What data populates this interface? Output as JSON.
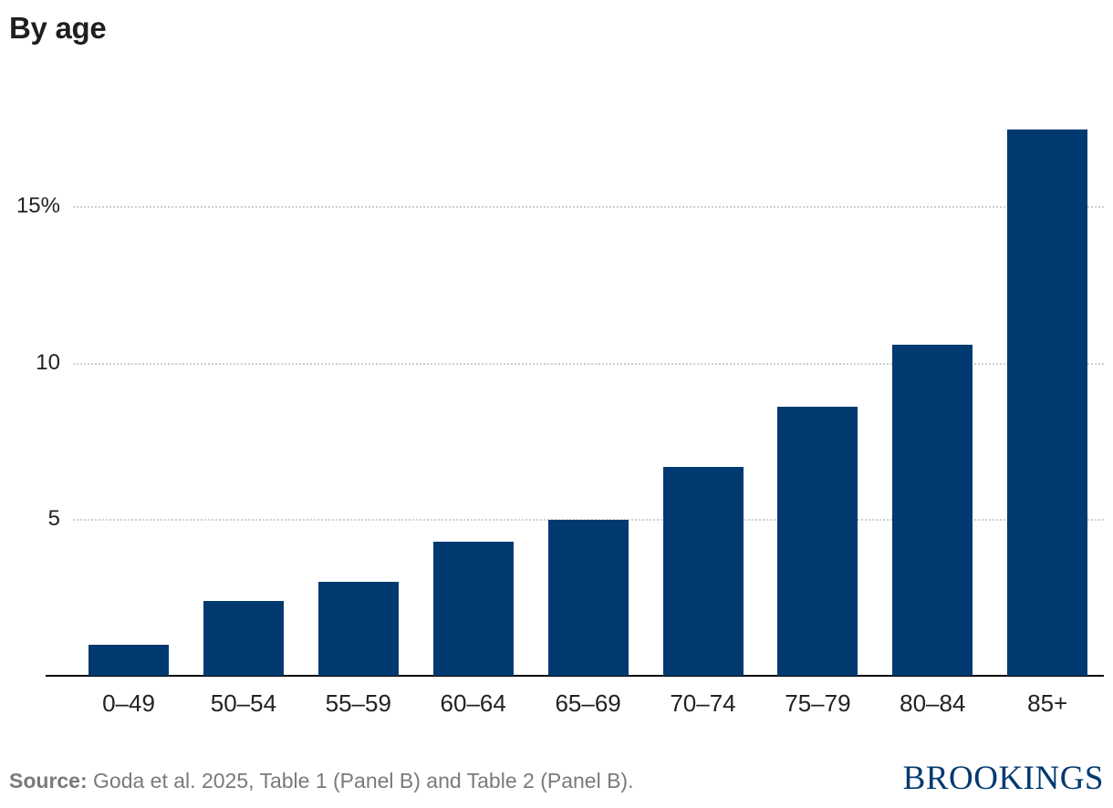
{
  "title": "By age",
  "source": {
    "label": "Source:",
    "text": " Goda et al. 2025, Table 1 (Panel B) and Table 2 (Panel B)."
  },
  "logo": "BROOKINGS",
  "colors": {
    "bar": "#003a70",
    "grid": "#cfcfcf",
    "axis": "#000000",
    "source_text": "#7a7a7a"
  },
  "y_ticks": [
    {
      "label": "15%",
      "value": 15
    },
    {
      "label": "10",
      "value": 10
    },
    {
      "label": "5",
      "value": 5
    }
  ],
  "chart_data": {
    "type": "bar",
    "title": "By age",
    "xlabel": "",
    "ylabel": "",
    "categories": [
      "0–49",
      "50–54",
      "55–59",
      "60–64",
      "65–69",
      "70–74",
      "75–79",
      "80–84",
      "85+"
    ],
    "values": [
      1.0,
      2.4,
      3.0,
      4.3,
      5.0,
      6.7,
      8.6,
      10.6,
      17.5
    ],
    "ylim": [
      0,
      18
    ],
    "y_tick_labels": [
      "5",
      "10",
      "15%"
    ],
    "grid": "horizontal dotted",
    "legend": "none",
    "annotations": [
      "Source: Goda et al. 2025, Table 1 (Panel B) and Table 2 (Panel B).",
      "BROOKINGS"
    ]
  }
}
